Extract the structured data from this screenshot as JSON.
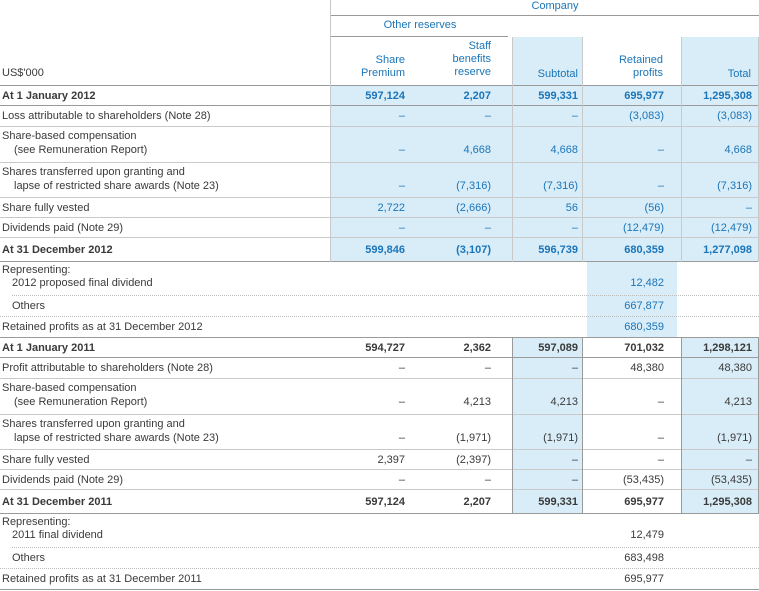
{
  "header": {
    "company": "Company",
    "other_reserves": "Other reserves",
    "currency": "US$'000",
    "columns": [
      [
        "Share",
        "Premium"
      ],
      [
        "Staff",
        "benefits",
        "reserve"
      ],
      [
        "Subtotal"
      ],
      [
        "Retained",
        "profits"
      ],
      [
        "Total"
      ]
    ]
  },
  "section_2012": {
    "rows": [
      {
        "label": "At 1 January 2012",
        "values": [
          "597,124",
          "2,207",
          "599,331",
          "695,977",
          "1,295,308"
        ]
      },
      {
        "label": "Loss attributable to shareholders (Note 28)",
        "values": [
          "–",
          "–",
          "–",
          "(3,083)",
          "(3,083)"
        ]
      },
      {
        "label": "Share-based compensation",
        "label2": "(see Remuneration Report)",
        "values": [
          "–",
          "4,668",
          "4,668",
          "–",
          "4,668"
        ]
      },
      {
        "label": "Shares transferred upon granting and",
        "label2": "lapse of restricted share awards (Note 23)",
        "values": [
          "–",
          "(7,316)",
          "(7,316)",
          "–",
          "(7,316)"
        ]
      },
      {
        "label": "Share fully vested",
        "values": [
          "2,722",
          "(2,666)",
          "56",
          "(56)",
          "–"
        ]
      },
      {
        "label": "Dividends paid (Note 29)",
        "values": [
          "–",
          "–",
          "–",
          "(12,479)",
          "(12,479)"
        ]
      },
      {
        "label": "At 31 December 2012",
        "values": [
          "599,846",
          "(3,107)",
          "596,739",
          "680,359",
          "1,277,098"
        ]
      }
    ],
    "representing": {
      "title": "Representing:",
      "line1_label": "2012 proposed final dividend",
      "line1_value": "12,482",
      "line2_label": "Others",
      "line2_value": "667,877",
      "total_label": "Retained profits as at 31 December 2012",
      "total_value": "680,359"
    }
  },
  "section_2011": {
    "rows": [
      {
        "label": "At 1 January 2011",
        "values": [
          "594,727",
          "2,362",
          "597,089",
          "701,032",
          "1,298,121"
        ]
      },
      {
        "label": "Profit attributable to shareholders (Note 28)",
        "values": [
          "–",
          "–",
          "–",
          "48,380",
          "48,380"
        ]
      },
      {
        "label": "Share-based compensation",
        "label2": "(see Remuneration Report)",
        "values": [
          "–",
          "4,213",
          "4,213",
          "–",
          "4,213"
        ]
      },
      {
        "label": "Shares transferred upon granting and",
        "label2": "lapse of restricted share awards (Note 23)",
        "values": [
          "–",
          "(1,971)",
          "(1,971)",
          "–",
          "(1,971)"
        ]
      },
      {
        "label": "Share fully vested",
        "values": [
          "2,397",
          "(2,397)",
          "–",
          "–",
          "–"
        ]
      },
      {
        "label": "Dividends paid (Note 29)",
        "values": [
          "–",
          "–",
          "–",
          "(53,435)",
          "(53,435)"
        ]
      },
      {
        "label": "At 31 December 2011",
        "values": [
          "597,124",
          "2,207",
          "599,331",
          "695,977",
          "1,295,308"
        ]
      }
    ],
    "representing": {
      "title": "Representing:",
      "line1_label": "2011 final dividend",
      "line1_value": "12,479",
      "line2_label": "Others",
      "line2_value": "683,498",
      "total_label": "Retained profits as at 31 December 2011",
      "total_value": "695,977"
    }
  },
  "colors": {
    "accent": "#1b75b8",
    "shade": "#d9edf8",
    "text": "#3a3a3a"
  }
}
